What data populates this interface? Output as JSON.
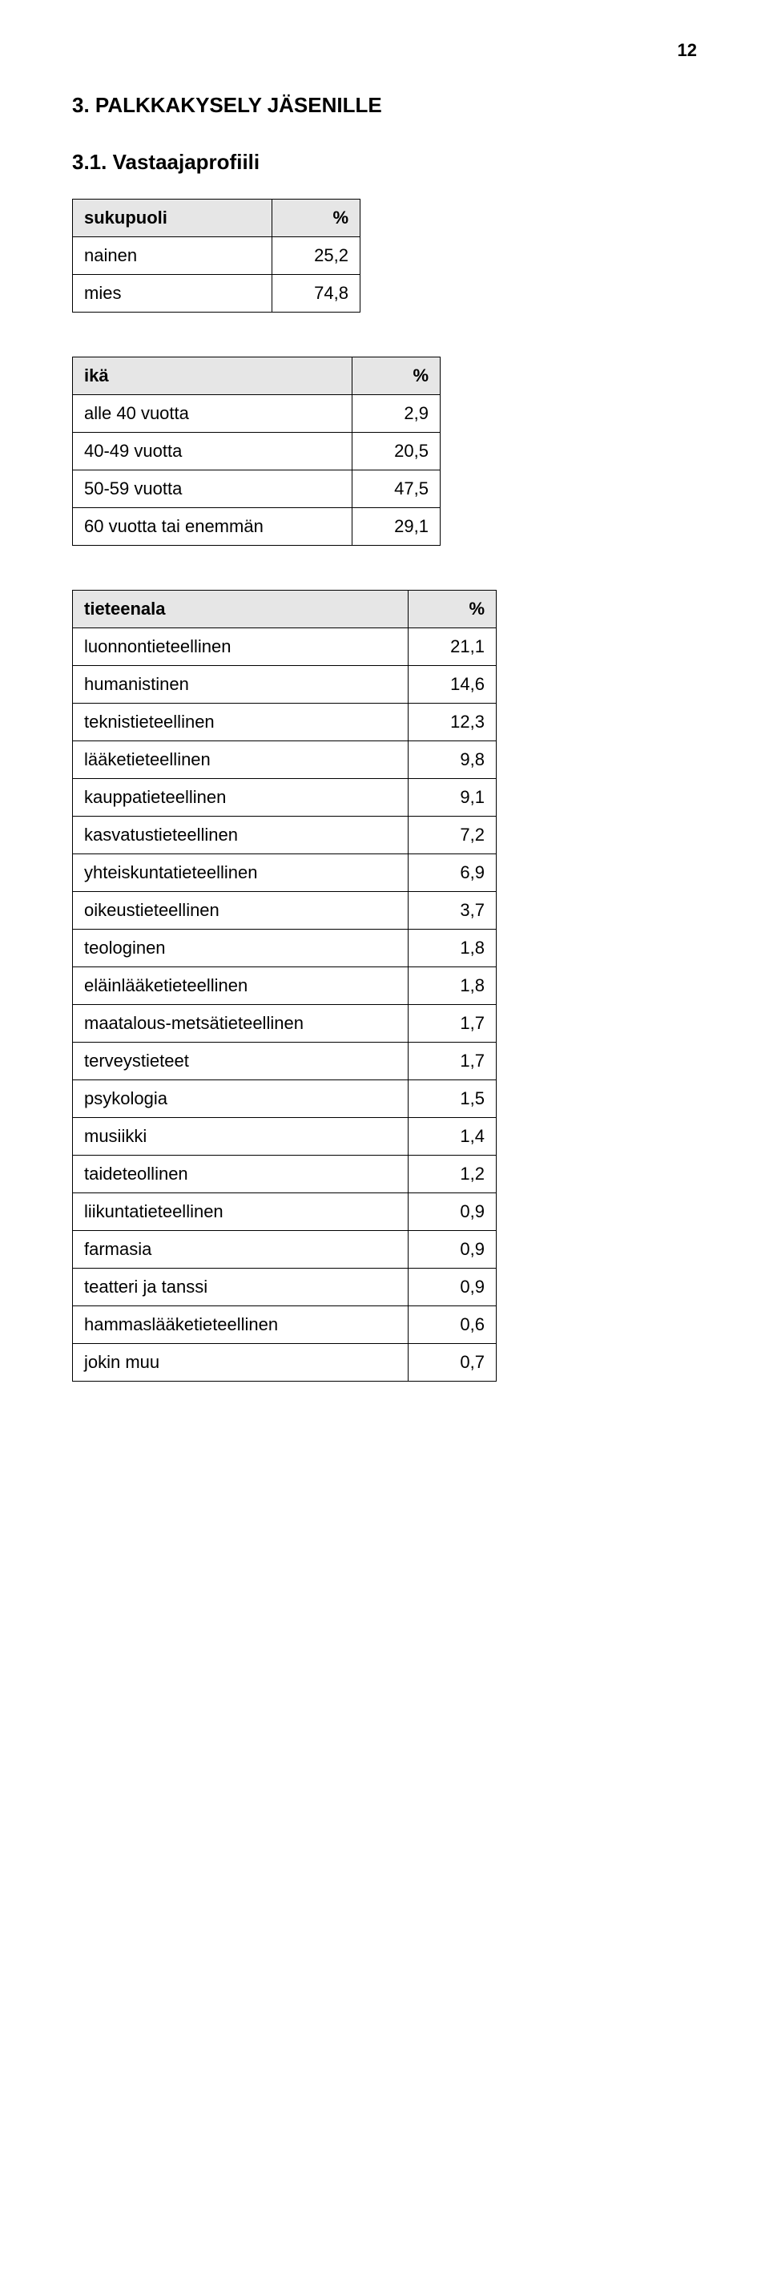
{
  "page_number": "12",
  "heading": "3. PALKKAKYSELY JÄSENILLE",
  "subheading": "3.1. Vastaajaprofiili",
  "tables": {
    "gender": {
      "header_label": "sukupuoli",
      "header_pct": "%",
      "rows": [
        {
          "label": "nainen",
          "value": "25,2"
        },
        {
          "label": "mies",
          "value": "74,8"
        }
      ]
    },
    "age": {
      "header_label": "ikä",
      "header_pct": "%",
      "rows": [
        {
          "label": "alle 40 vuotta",
          "value": "2,9"
        },
        {
          "label": "40-49 vuotta",
          "value": "20,5"
        },
        {
          "label": "50-59 vuotta",
          "value": "47,5"
        },
        {
          "label": "60 vuotta tai enemmän",
          "value": "29,1"
        }
      ]
    },
    "discipline": {
      "header_label": "tieteenala",
      "header_pct": "%",
      "rows": [
        {
          "label": "luonnontieteellinen",
          "value": "21,1"
        },
        {
          "label": "humanistinen",
          "value": "14,6"
        },
        {
          "label": "teknistieteellinen",
          "value": "12,3"
        },
        {
          "label": "lääketieteellinen",
          "value": "9,8"
        },
        {
          "label": "kauppatieteellinen",
          "value": "9,1"
        },
        {
          "label": "kasvatustieteellinen",
          "value": "7,2"
        },
        {
          "label": "yhteiskuntatieteellinen",
          "value": "6,9"
        },
        {
          "label": "oikeustieteellinen",
          "value": "3,7"
        },
        {
          "label": "teologinen",
          "value": "1,8"
        },
        {
          "label": "eläinlääketieteellinen",
          "value": "1,8"
        },
        {
          "label": "maatalous-metsätieteellinen",
          "value": "1,7"
        },
        {
          "label": "terveystieteet",
          "value": "1,7"
        },
        {
          "label": "psykologia",
          "value": "1,5"
        },
        {
          "label": "musiikki",
          "value": "1,4"
        },
        {
          "label": "taideteollinen",
          "value": "1,2"
        },
        {
          "label": "liikuntatieteellinen",
          "value": "0,9"
        },
        {
          "label": "farmasia",
          "value": "0,9"
        },
        {
          "label": "teatteri ja tanssi",
          "value": "0,9"
        },
        {
          "label": "hammaslääketieteellinen",
          "value": "0,6"
        },
        {
          "label": "jokin muu",
          "value": "0,7"
        }
      ]
    }
  },
  "styling": {
    "background_color": "#ffffff",
    "text_color": "#000000",
    "header_bg": "#e6e6e6",
    "border_color": "#000000",
    "font_family": "Arial, Helvetica, sans-serif",
    "page_number_fontsize": 22,
    "heading_fontsize": 26,
    "table_fontsize": 22
  }
}
